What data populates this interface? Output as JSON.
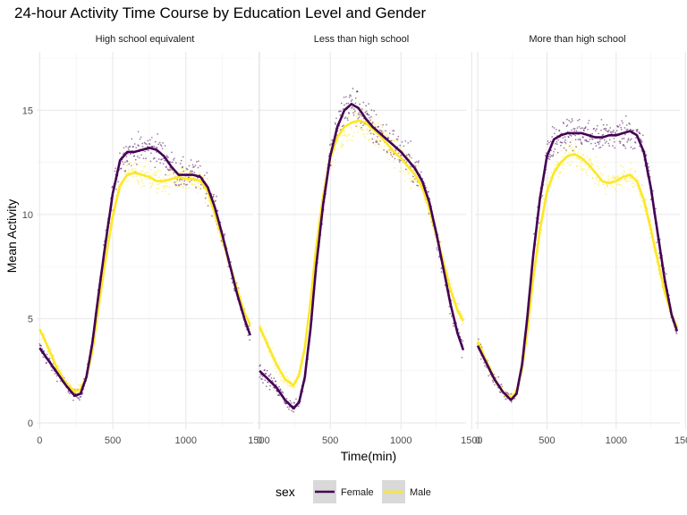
{
  "chart_data": {
    "type": "scatter",
    "title": "24-hour Activity Time Course by Education Level and Gender",
    "xlabel": "Time(min)",
    "ylabel": "Mean Activity",
    "xlim": [
      -20,
      1460
    ],
    "ylim": [
      -0.3,
      17.8
    ],
    "x_ticks": [
      0,
      500,
      1000,
      1500
    ],
    "y_ticks": [
      0,
      5,
      10,
      15
    ],
    "grid": true,
    "legend": {
      "title": "sex",
      "position": "bottom",
      "entries": [
        "Female",
        "Male"
      ]
    },
    "colors": {
      "Female": "#440154",
      "Male": "#fde725"
    },
    "panels": [
      {
        "label": "High school equivalent",
        "series": [
          {
            "name": "Female",
            "smooth": {
              "x": [
                0,
                60,
                120,
                180,
                240,
                280,
                320,
                360,
                400,
                450,
                500,
                550,
                600,
                650,
                700,
                750,
                800,
                850,
                900,
                950,
                1000,
                1050,
                1100,
                1150,
                1200,
                1250,
                1300,
                1350,
                1400,
                1440
              ],
              "y": [
                3.6,
                3.0,
                2.4,
                1.8,
                1.3,
                1.4,
                2.2,
                3.8,
                6.0,
                8.6,
                11.0,
                12.6,
                13.0,
                13.0,
                13.1,
                13.2,
                13.1,
                12.8,
                12.3,
                11.9,
                11.9,
                11.9,
                11.8,
                11.3,
                10.3,
                9.0,
                7.6,
                6.2,
                5.0,
                4.2
              ]
            },
            "spread": 0.8
          },
          {
            "name": "Male",
            "smooth": {
              "x": [
                0,
                60,
                120,
                180,
                240,
                280,
                320,
                360,
                400,
                450,
                500,
                550,
                600,
                650,
                700,
                750,
                800,
                850,
                900,
                950,
                1000,
                1050,
                1100,
                1150,
                1200,
                1250,
                1300,
                1350,
                1400,
                1440
              ],
              "y": [
                4.5,
                3.6,
                2.6,
                1.9,
                1.5,
                1.6,
                2.2,
                3.4,
                5.4,
                7.8,
                9.9,
                11.4,
                11.9,
                12.0,
                11.9,
                11.8,
                11.6,
                11.6,
                11.7,
                11.8,
                11.7,
                11.7,
                11.6,
                11.1,
                10.0,
                8.8,
                7.6,
                6.4,
                5.3,
                4.7
              ]
            },
            "spread": 0.7
          }
        ]
      },
      {
        "label": "Less than high school",
        "series": [
          {
            "name": "Female",
            "smooth": {
              "x": [
                0,
                60,
                120,
                180,
                240,
                280,
                320,
                360,
                400,
                450,
                500,
                550,
                600,
                650,
                700,
                750,
                800,
                850,
                900,
                950,
                1000,
                1050,
                1100,
                1150,
                1200,
                1250,
                1300,
                1350,
                1400,
                1440
              ],
              "y": [
                2.5,
                2.1,
                1.7,
                1.1,
                0.7,
                1.0,
                2.2,
                4.5,
                7.5,
                10.5,
                12.8,
                14.2,
                15.0,
                15.3,
                15.1,
                14.6,
                14.2,
                13.9,
                13.6,
                13.3,
                13.0,
                12.6,
                12.2,
                11.6,
                10.6,
                9.1,
                7.4,
                5.7,
                4.3,
                3.5
              ]
            },
            "spread": 0.9
          },
          {
            "name": "Male",
            "smooth": {
              "x": [
                0,
                60,
                120,
                180,
                240,
                280,
                320,
                360,
                400,
                450,
                500,
                550,
                600,
                650,
                700,
                750,
                800,
                850,
                900,
                950,
                1000,
                1050,
                1100,
                1150,
                1200,
                1250,
                1300,
                1350,
                1400,
                1440
              ],
              "y": [
                4.6,
                3.7,
                2.8,
                2.1,
                1.8,
                2.3,
                3.6,
                5.8,
                8.4,
                10.9,
                12.7,
                13.7,
                14.2,
                14.4,
                14.5,
                14.4,
                14.1,
                13.8,
                13.4,
                13.0,
                12.7,
                12.3,
                11.9,
                11.3,
                10.3,
                9.0,
                7.7,
                6.4,
                5.4,
                4.9
              ]
            },
            "spread": 0.8
          }
        ]
      },
      {
        "label": "More than high school",
        "series": [
          {
            "name": "Female",
            "smooth": {
              "x": [
                0,
                60,
                120,
                180,
                240,
                280,
                320,
                360,
                400,
                450,
                500,
                550,
                600,
                650,
                700,
                750,
                800,
                850,
                900,
                950,
                1000,
                1050,
                1100,
                1150,
                1200,
                1250,
                1300,
                1350,
                1400,
                1440
              ],
              "y": [
                3.7,
                2.9,
                2.1,
                1.5,
                1.1,
                1.4,
                2.8,
                5.2,
                8.0,
                10.8,
                12.8,
                13.6,
                13.8,
                13.9,
                13.9,
                13.9,
                13.8,
                13.7,
                13.7,
                13.8,
                13.8,
                13.9,
                14.0,
                13.8,
                13.0,
                11.3,
                9.1,
                6.9,
                5.2,
                4.4
              ]
            },
            "spread": 0.8
          },
          {
            "name": "Male",
            "smooth": {
              "x": [
                0,
                60,
                120,
                180,
                240,
                280,
                320,
                360,
                400,
                450,
                500,
                550,
                600,
                650,
                700,
                750,
                800,
                850,
                900,
                950,
                1000,
                1050,
                1100,
                1150,
                1200,
                1250,
                1300,
                1350,
                1400,
                1440
              ],
              "y": [
                3.9,
                3.0,
                2.1,
                1.5,
                1.2,
                1.5,
                2.6,
                4.5,
                6.9,
                9.3,
                11.1,
                12.0,
                12.5,
                12.8,
                12.9,
                12.7,
                12.4,
                12.0,
                11.6,
                11.5,
                11.6,
                11.8,
                11.9,
                11.6,
                10.7,
                9.3,
                7.8,
                6.3,
                5.2,
                4.6
              ]
            },
            "spread": 0.7
          }
        ]
      }
    ]
  }
}
